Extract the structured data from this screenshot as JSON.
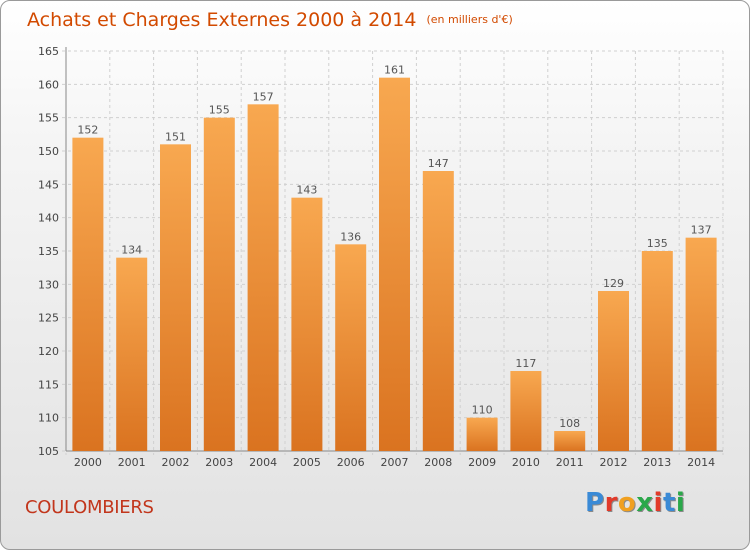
{
  "header": {
    "title": "Achats et Charges Externes 2000 à 2014",
    "unit": "(en milliers d'€)"
  },
  "footer": {
    "commune": "COULOMBIERS",
    "logo_letters": [
      "P",
      "r",
      "o",
      "x",
      "i",
      "t",
      "i"
    ]
  },
  "colors": {
    "title": "#d24a00",
    "commune": "#c2361c",
    "bar_light": "#f8a850",
    "bar_dark": "#da7320",
    "logo": [
      "#3a8ad6",
      "#e23a2a",
      "#f0a020",
      "#2aa84a",
      "#e23a2a",
      "#3a8ad6",
      "#2aa84a"
    ]
  },
  "chart_data": {
    "type": "bar",
    "title": "Achats et Charges Externes 2000 à 2014",
    "unit": "(en milliers d'€)",
    "categories": [
      "2000",
      "2001",
      "2002",
      "2003",
      "2004",
      "2005",
      "2006",
      "2007",
      "2008",
      "2009",
      "2010",
      "2011",
      "2012",
      "2013",
      "2014"
    ],
    "values": [
      152,
      134,
      151,
      155,
      157,
      143,
      136,
      161,
      147,
      110,
      117,
      108,
      129,
      135,
      137
    ],
    "ylim": [
      105,
      165
    ],
    "yticks": [
      105,
      110,
      115,
      120,
      125,
      130,
      135,
      140,
      145,
      150,
      155,
      160,
      165
    ],
    "grid": true,
    "data_labels": true
  }
}
